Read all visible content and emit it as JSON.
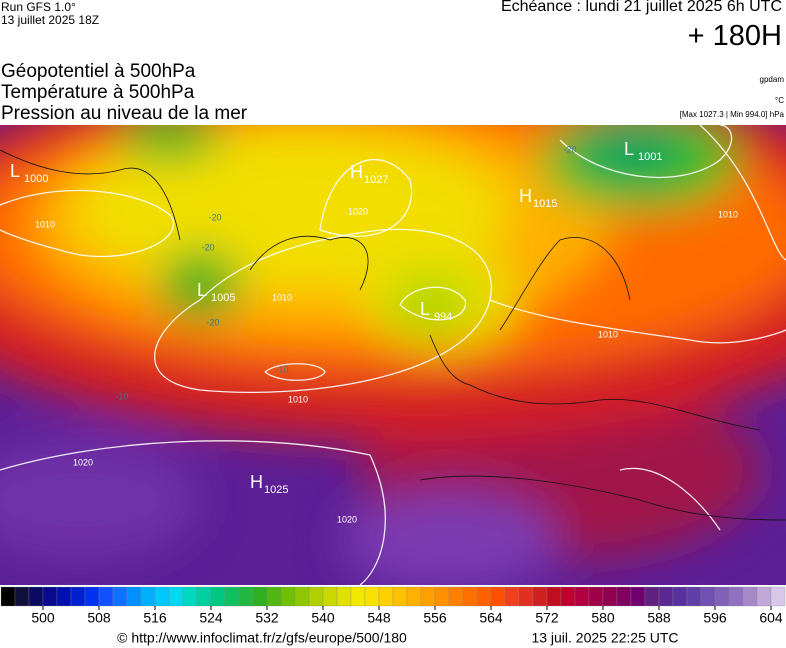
{
  "header": {
    "run": "Run GFS 1.0°",
    "run_date": "13 juillet 2025 18Z",
    "forecast": "Echéance : lundi 21 juillet 2025 6h UTC",
    "lead": "+ 180H"
  },
  "layers": [
    "Géopotentiel à 500hPa",
    "Température à 500hPa",
    "Pression au niveau de la mer"
  ],
  "units": {
    "geopotential": "gpdam",
    "temperature": "°C",
    "pressure": "[Max 1027.3 | Min 994.0] hPa"
  },
  "centers": [
    {
      "letter": "L",
      "value": 1000
    },
    {
      "letter": "H",
      "value": 1027
    },
    {
      "letter": "H",
      "value": 1015
    },
    {
      "letter": "L",
      "value": 1005
    },
    {
      "letter": "L",
      "value": 994
    },
    {
      "letter": "L",
      "value": 1001
    },
    {
      "letter": "H",
      "value": 1025
    }
  ],
  "isobar_labels": [
    1010,
    1010,
    1010,
    1020,
    1020,
    1010,
    1010,
    1020
  ],
  "temperature_labels": [
    -20,
    -20,
    -20,
    -20,
    -10,
    -10
  ],
  "colorbar": {
    "ticks": [
      500,
      508,
      516,
      524,
      532,
      540,
      548,
      556,
      564,
      572,
      580,
      588,
      596,
      604
    ]
  },
  "footer": {
    "source": "© http://www.infoclimat.fr/z/gfs/europe/500/180",
    "timestamp": "13 juil. 2025 22:25 UTC"
  }
}
